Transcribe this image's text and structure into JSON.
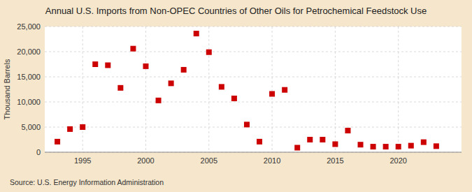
{
  "chart_data": {
    "type": "scatter",
    "title": "Annual U.S. Imports from Non-OPEC Countries of Other Oils for Petrochemical Feedstock Use",
    "y_label": "Thousand Barrels",
    "annotations": [
      "Source: U.S. Energy Information Administration"
    ],
    "x": [
      1993,
      1994,
      1995,
      1996,
      1997,
      1998,
      1999,
      2000,
      2001,
      2002,
      2003,
      2004,
      2005,
      2006,
      2007,
      2008,
      2009,
      2010,
      2011,
      2012,
      2013,
      2014,
      2015,
      2016,
      2017,
      2018,
      2019,
      2020,
      2021,
      2022,
      2023
    ],
    "values": [
      2100,
      4600,
      5000,
      17500,
      17300,
      12800,
      20600,
      17100,
      10300,
      13700,
      16400,
      23600,
      19900,
      13000,
      10700,
      5500,
      2100,
      11600,
      12400,
      900,
      2500,
      2500,
      1600,
      4300,
      1500,
      1100,
      1100,
      1100,
      1300,
      2000,
      1200
    ],
    "color": "#cc0000",
    "marker": "square",
    "xlim": [
      1992,
      2025
    ],
    "ylim": [
      0,
      25000
    ],
    "xticks": [
      1995,
      2000,
      2005,
      2010,
      2015,
      2020
    ],
    "yticks": [
      0,
      {
        "value": 5000,
        "label": "5,000"
      },
      {
        "value": 10000,
        "label": "10,000"
      },
      {
        "value": 15000,
        "label": "15,000"
      },
      {
        "value": 20000,
        "label": "20,000"
      },
      {
        "value": 25000,
        "label": "25,000"
      }
    ],
    "grid": true
  }
}
